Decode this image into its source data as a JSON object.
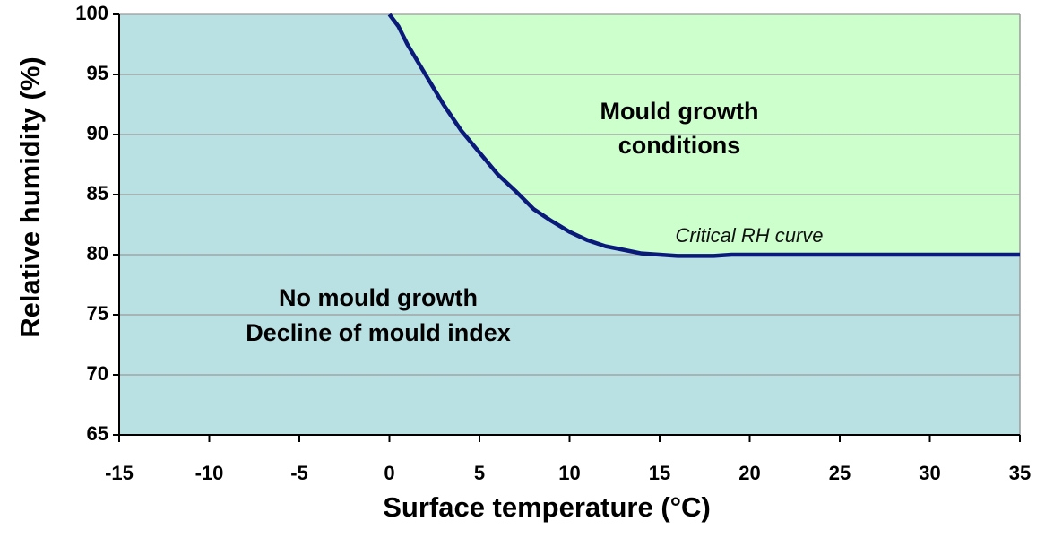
{
  "chart_data": {
    "type": "line",
    "x_label": "Surface temperature (°C)",
    "y_label": "Relative humidity (%)",
    "annotations": [
      "Mould growth",
      "conditions",
      "No mould growth",
      "Decline of mould index",
      "Critical RH curve"
    ],
    "x": [
      0,
      0.5,
      1,
      2,
      3,
      4,
      5,
      6,
      7,
      8,
      9,
      10,
      11,
      12,
      13,
      14,
      15,
      16,
      17,
      18,
      19,
      20,
      25,
      30,
      35
    ],
    "series": [
      {
        "name": "Critical RH curve",
        "color": "#0a1a7a",
        "values": [
          100,
          99,
          97.5,
          95,
          92.5,
          90.3,
          88.5,
          86.7,
          85.3,
          83.8,
          82.8,
          81.9,
          81.2,
          80.7,
          80.4,
          80.1,
          80,
          79.9,
          79.9,
          79.9,
          80,
          80,
          80,
          80,
          80
        ]
      }
    ],
    "xlim": [
      -15,
      35
    ],
    "xticks": [
      -15,
      -10,
      -5,
      0,
      5,
      10,
      15,
      20,
      25,
      30,
      35
    ],
    "ylim": [
      65,
      100
    ],
    "yticks": [
      65,
      70,
      75,
      80,
      85,
      90,
      95,
      100
    ],
    "grid": true,
    "below_color": "#b9e0e2",
    "above_color": "#ccffcc"
  }
}
